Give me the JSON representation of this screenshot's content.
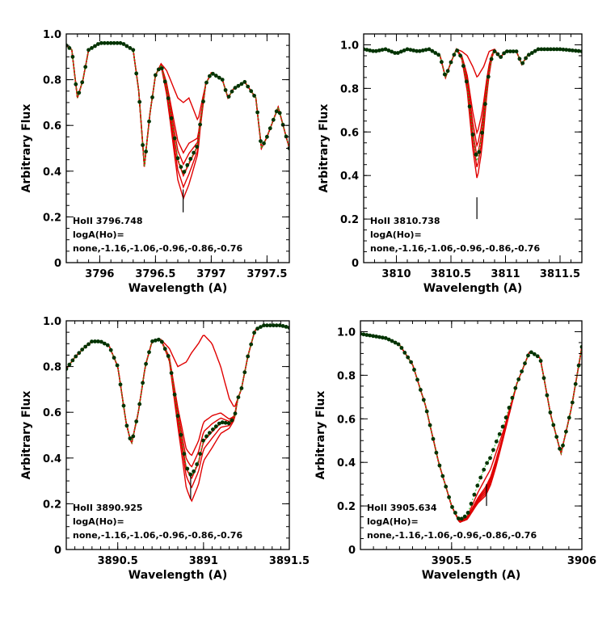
{
  "chart_data": [
    {
      "type": "line",
      "xlabel": "Wavelength (A)",
      "ylabel": "Arbitrary Flux",
      "xlim": [
        3795.7,
        3797.7
      ],
      "ylim": [
        0,
        1.0
      ],
      "xticks": [
        3796,
        3796.5,
        3797,
        3797.5
      ],
      "xticklabels": [
        "3796",
        "3796.5",
        "3797",
        "3797.5"
      ],
      "yticks": [
        0,
        0.2,
        0.4,
        0.6,
        0.8,
        1.0
      ],
      "yticklabels": [
        "0",
        "0.2",
        "0.4",
        "0.6",
        "0.8",
        "1.0"
      ],
      "annotation": [
        "HoII 3796.748",
        "logA(Ho)=",
        "none,-1.16,-1.06,-0.96,-0.86,-0.76"
      ],
      "line_marker": {
        "x": 3796.748,
        "y_range": [
          0.22,
          0.32
        ]
      },
      "observed_color": "#003300",
      "model_color": "#e00000",
      "continuum": [
        [
          3795.7,
          0.95
        ],
        [
          3795.75,
          0.93
        ],
        [
          3795.8,
          0.72
        ],
        [
          3795.85,
          0.8
        ],
        [
          3795.9,
          0.93
        ],
        [
          3796.0,
          0.96
        ],
        [
          3796.2,
          0.96
        ],
        [
          3796.3,
          0.93
        ],
        [
          3796.35,
          0.75
        ],
        [
          3796.4,
          0.42
        ],
        [
          3796.45,
          0.65
        ],
        [
          3796.5,
          0.82
        ],
        [
          3796.55,
          0.87
        ],
        [
          3796.6,
          0.84
        ],
        [
          3796.7,
          0.72
        ],
        [
          3796.75,
          0.7
        ],
        [
          3796.8,
          0.72
        ],
        [
          3796.88,
          0.62
        ],
        [
          3796.95,
          0.78
        ],
        [
          3797.0,
          0.83
        ],
        [
          3797.1,
          0.8
        ],
        [
          3797.15,
          0.72
        ],
        [
          3797.2,
          0.76
        ],
        [
          3797.3,
          0.79
        ],
        [
          3797.4,
          0.72
        ],
        [
          3797.45,
          0.5
        ],
        [
          3797.5,
          0.55
        ],
        [
          3797.6,
          0.68
        ],
        [
          3797.7,
          0.5
        ]
      ],
      "depth_profile": [
        [
          3796.5,
          0
        ],
        [
          3796.55,
          0.02
        ],
        [
          3796.6,
          0.25
        ],
        [
          3796.65,
          0.55
        ],
        [
          3796.7,
          0.85
        ],
        [
          3796.75,
          1.0
        ],
        [
          3796.8,
          0.9
        ],
        [
          3796.85,
          0.55
        ],
        [
          3796.9,
          0.2
        ],
        [
          3796.95,
          0
        ],
        [
          3797.7,
          0
        ]
      ],
      "model_extra_depth": [
        0,
        0.22,
        0.27,
        0.32,
        0.37,
        0.42
      ],
      "observed_extra_depth": 0.31
    },
    {
      "type": "line",
      "xlabel": "Wavelength (A)",
      "ylabel": "Arbitrary Flux",
      "xlim": [
        3809.7,
        3811.7
      ],
      "ylim": [
        0,
        1.05
      ],
      "xticks": [
        3810,
        3810.5,
        3811,
        3811.5
      ],
      "xticklabels": [
        "3810",
        "3810.5",
        "3811",
        "3811.5"
      ],
      "yticks": [
        0,
        0.2,
        0.4,
        0.6,
        0.8,
        1.0
      ],
      "yticklabels": [
        "0",
        "0.2",
        "0.4",
        "0.6",
        "0.8",
        "1.0"
      ],
      "annotation": [
        "HoII 3810.738",
        "logA(Ho)=",
        "none,-1.16,-1.06,-0.96,-0.86,-0.76"
      ],
      "line_marker": {
        "x": 3810.738,
        "y_range": [
          0.2,
          0.3
        ]
      },
      "observed_color": "#003300",
      "model_color": "#e00000",
      "continuum": [
        [
          3809.7,
          0.98
        ],
        [
          3809.8,
          0.97
        ],
        [
          3809.9,
          0.98
        ],
        [
          3810.0,
          0.96
        ],
        [
          3810.1,
          0.98
        ],
        [
          3810.2,
          0.97
        ],
        [
          3810.3,
          0.98
        ],
        [
          3810.4,
          0.95
        ],
        [
          3810.45,
          0.85
        ],
        [
          3810.5,
          0.92
        ],
        [
          3810.55,
          0.98
        ],
        [
          3810.6,
          0.97
        ],
        [
          3810.65,
          0.95
        ],
        [
          3810.7,
          0.9
        ],
        [
          3810.74,
          0.85
        ],
        [
          3810.8,
          0.9
        ],
        [
          3810.85,
          0.97
        ],
        [
          3810.9,
          0.98
        ],
        [
          3810.95,
          0.94
        ],
        [
          3811.0,
          0.97
        ],
        [
          3811.1,
          0.97
        ],
        [
          3811.15,
          0.91
        ],
        [
          3811.2,
          0.95
        ],
        [
          3811.3,
          0.98
        ],
        [
          3811.5,
          0.98
        ],
        [
          3811.7,
          0.97
        ]
      ],
      "depth_profile": [
        [
          3810.55,
          0
        ],
        [
          3810.6,
          0.08
        ],
        [
          3810.65,
          0.35
        ],
        [
          3810.7,
          0.8
        ],
        [
          3810.74,
          1.0
        ],
        [
          3810.78,
          0.8
        ],
        [
          3810.83,
          0.35
        ],
        [
          3810.88,
          0.05
        ],
        [
          3810.92,
          0
        ],
        [
          3811.7,
          0
        ]
      ],
      "model_extra_depth": [
        0,
        0.26,
        0.32,
        0.37,
        0.42,
        0.47
      ],
      "observed_extra_depth": 0.39
    },
    {
      "type": "line",
      "xlabel": "Wavelength (A)",
      "ylabel": "Arbitrary Flux",
      "xlim": [
        3890.2,
        3891.5
      ],
      "ylim": [
        0,
        1.0
      ],
      "xticks": [
        3890.5,
        3891,
        3891.5
      ],
      "xticklabels": [
        "3890.5",
        "3891",
        "3891.5"
      ],
      "yticks": [
        0,
        0.2,
        0.4,
        0.6,
        0.8,
        1.0
      ],
      "yticklabels": [
        "0",
        "0.2",
        "0.4",
        "0.6",
        "0.8",
        "1.0"
      ],
      "annotation": [
        "HoII 3890.925",
        "logA(Ho)=",
        "none,-1.16,-1.06,-0.96,-0.86,-0.76"
      ],
      "line_marker": {
        "x": 3890.925,
        "y_range": [
          0.22,
          0.32
        ]
      },
      "observed_color": "#003300",
      "model_color": "#e00000",
      "continuum": [
        [
          3890.2,
          0.79
        ],
        [
          3890.25,
          0.84
        ],
        [
          3890.3,
          0.88
        ],
        [
          3890.35,
          0.91
        ],
        [
          3890.4,
          0.91
        ],
        [
          3890.45,
          0.89
        ],
        [
          3890.5,
          0.8
        ],
        [
          3890.55,
          0.55
        ],
        [
          3890.58,
          0.46
        ],
        [
          3890.62,
          0.6
        ],
        [
          3890.66,
          0.8
        ],
        [
          3890.7,
          0.91
        ],
        [
          3890.75,
          0.92
        ],
        [
          3890.8,
          0.88
        ],
        [
          3890.85,
          0.8
        ],
        [
          3890.9,
          0.82
        ],
        [
          3890.93,
          0.86
        ],
        [
          3890.97,
          0.9
        ],
        [
          3891.0,
          0.94
        ],
        [
          3891.05,
          0.9
        ],
        [
          3891.1,
          0.8
        ],
        [
          3891.15,
          0.66
        ],
        [
          3891.18,
          0.62
        ],
        [
          3891.22,
          0.7
        ],
        [
          3891.26,
          0.85
        ],
        [
          3891.3,
          0.96
        ],
        [
          3891.35,
          0.98
        ],
        [
          3891.4,
          0.98
        ],
        [
          3891.45,
          0.98
        ],
        [
          3891.5,
          0.97
        ]
      ],
      "depth_profile": [
        [
          3890.75,
          0
        ],
        [
          3890.8,
          0.08
        ],
        [
          3890.85,
          0.4
        ],
        [
          3890.9,
          0.85
        ],
        [
          3890.93,
          1.0
        ],
        [
          3890.97,
          0.95
        ],
        [
          3891.0,
          0.85
        ],
        [
          3891.05,
          0.7
        ],
        [
          3891.1,
          0.45
        ],
        [
          3891.15,
          0.2
        ],
        [
          3891.2,
          0
        ],
        [
          3891.5,
          0
        ]
      ],
      "model_extra_depth": [
        0,
        0.45,
        0.5,
        0.55,
        0.59,
        0.65
      ],
      "observed_extra_depth": 0.54
    },
    {
      "type": "line",
      "xlabel": "Wavelength (A)",
      "ylabel": "Arbitrary Flux",
      "xlim": [
        3905.15,
        3906.0
      ],
      "ylim": [
        0,
        1.05
      ],
      "xticks": [
        3905.5,
        3906
      ],
      "xticklabels": [
        "3905.5",
        "3906"
      ],
      "yticks": [
        0,
        0.2,
        0.4,
        0.6,
        0.8,
        1.0
      ],
      "yticklabels": [
        "0",
        "0.2",
        "0.4",
        "0.6",
        "0.8",
        "1.0"
      ],
      "annotation": [
        "HoII 3905.634",
        "logA(Ho)=",
        "none,-1.16,-1.06,-0.96,-0.86,-0.76"
      ],
      "line_marker": {
        "x": 3905.634,
        "y_range": [
          0.2,
          0.3
        ]
      },
      "observed_color": "#003300",
      "model_color": "#e00000",
      "continuum": [
        [
          3905.15,
          0.99
        ],
        [
          3905.2,
          0.98
        ],
        [
          3905.25,
          0.97
        ],
        [
          3905.3,
          0.94
        ],
        [
          3905.35,
          0.85
        ],
        [
          3905.4,
          0.66
        ],
        [
          3905.45,
          0.4
        ],
        [
          3905.5,
          0.2
        ],
        [
          3905.53,
          0.13
        ],
        [
          3905.56,
          0.15
        ],
        [
          3905.6,
          0.26
        ],
        [
          3905.65,
          0.37
        ],
        [
          3905.7,
          0.55
        ],
        [
          3905.75,
          0.76
        ],
        [
          3905.8,
          0.91
        ],
        [
          3905.84,
          0.88
        ],
        [
          3905.88,
          0.62
        ],
        [
          3905.92,
          0.44
        ],
        [
          3905.96,
          0.65
        ],
        [
          3906.0,
          0.93
        ]
      ],
      "depth_profile": [
        [
          3905.5,
          0
        ],
        [
          3905.56,
          0.15
        ],
        [
          3905.6,
          0.6
        ],
        [
          3905.63,
          1.0
        ],
        [
          3905.67,
          0.8
        ],
        [
          3905.7,
          0.4
        ],
        [
          3905.75,
          0
        ],
        [
          3906.0,
          0
        ]
      ],
      "model_extra_depth": [
        0,
        0.04,
        0.05,
        0.06,
        0.07,
        0.08
      ],
      "observed_extra_depth": -0.06
    }
  ]
}
